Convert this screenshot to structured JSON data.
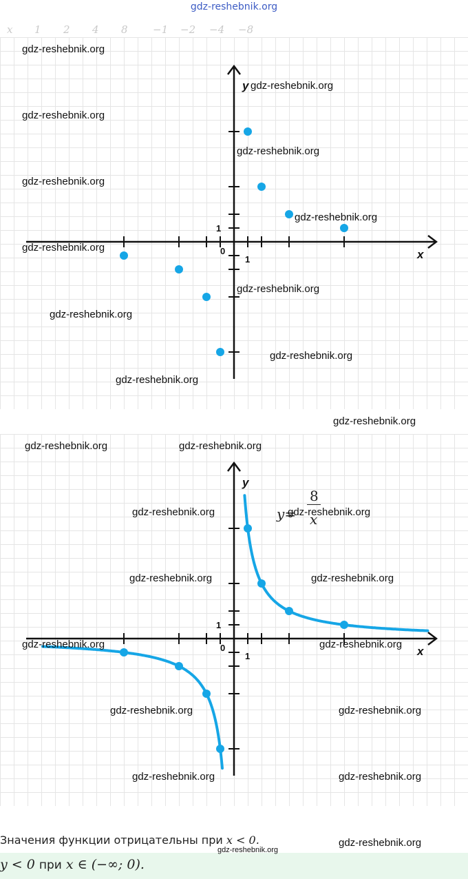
{
  "header": {
    "site": "gdz-reshebnik.org"
  },
  "table_header": [
    "x",
    "1",
    "2",
    "4",
    "8",
    "−1",
    "−2",
    "−4",
    "−8"
  ],
  "watermark": "gdz-reshebnik.org",
  "colors": {
    "accent": "#16a6e6",
    "axis": "#111111",
    "grid": "#e5e5e5",
    "answer_bg": "#e8f7ec"
  },
  "chart_data": [
    {
      "type": "scatter",
      "title": "",
      "xlabel": "x",
      "ylabel": "y",
      "origin_label": "0",
      "unit_x_label": "1",
      "unit_y_label": "1",
      "xlim": [
        -15,
        15
      ],
      "ylim": [
        -10,
        12
      ],
      "grid": true,
      "points": [
        {
          "x": 1,
          "y": 8
        },
        {
          "x": 2,
          "y": 4
        },
        {
          "x": 4,
          "y": 2
        },
        {
          "x": 8,
          "y": 1
        },
        {
          "x": -1,
          "y": -8
        },
        {
          "x": -2,
          "y": -4
        },
        {
          "x": -4,
          "y": -2
        },
        {
          "x": -8,
          "y": -1
        }
      ]
    },
    {
      "type": "line",
      "title": "",
      "xlabel": "x",
      "ylabel": "y",
      "origin_label": "0",
      "unit_x_label": "1",
      "unit_y_label": "1",
      "xlim": [
        -15,
        15
      ],
      "ylim": [
        -10,
        12
      ],
      "grid": true,
      "function": "y = 8/x",
      "points": [
        {
          "x": 1,
          "y": 8
        },
        {
          "x": 2,
          "y": 4
        },
        {
          "x": 4,
          "y": 2
        },
        {
          "x": 8,
          "y": 1
        },
        {
          "x": -1,
          "y": -8
        },
        {
          "x": -2,
          "y": -4
        },
        {
          "x": -4,
          "y": -2
        },
        {
          "x": -8,
          "y": -1
        }
      ]
    }
  ],
  "formula": {
    "lhs": "y",
    "eq": "=",
    "numerator": "8",
    "denominator": "x"
  },
  "conclusion": {
    "text": "Значения функции отрицательны при",
    "math": "x < 0."
  },
  "answer": {
    "lhs": "y < 0",
    "word": "при",
    "rhs": "x ∈ (−∞; 0)."
  }
}
